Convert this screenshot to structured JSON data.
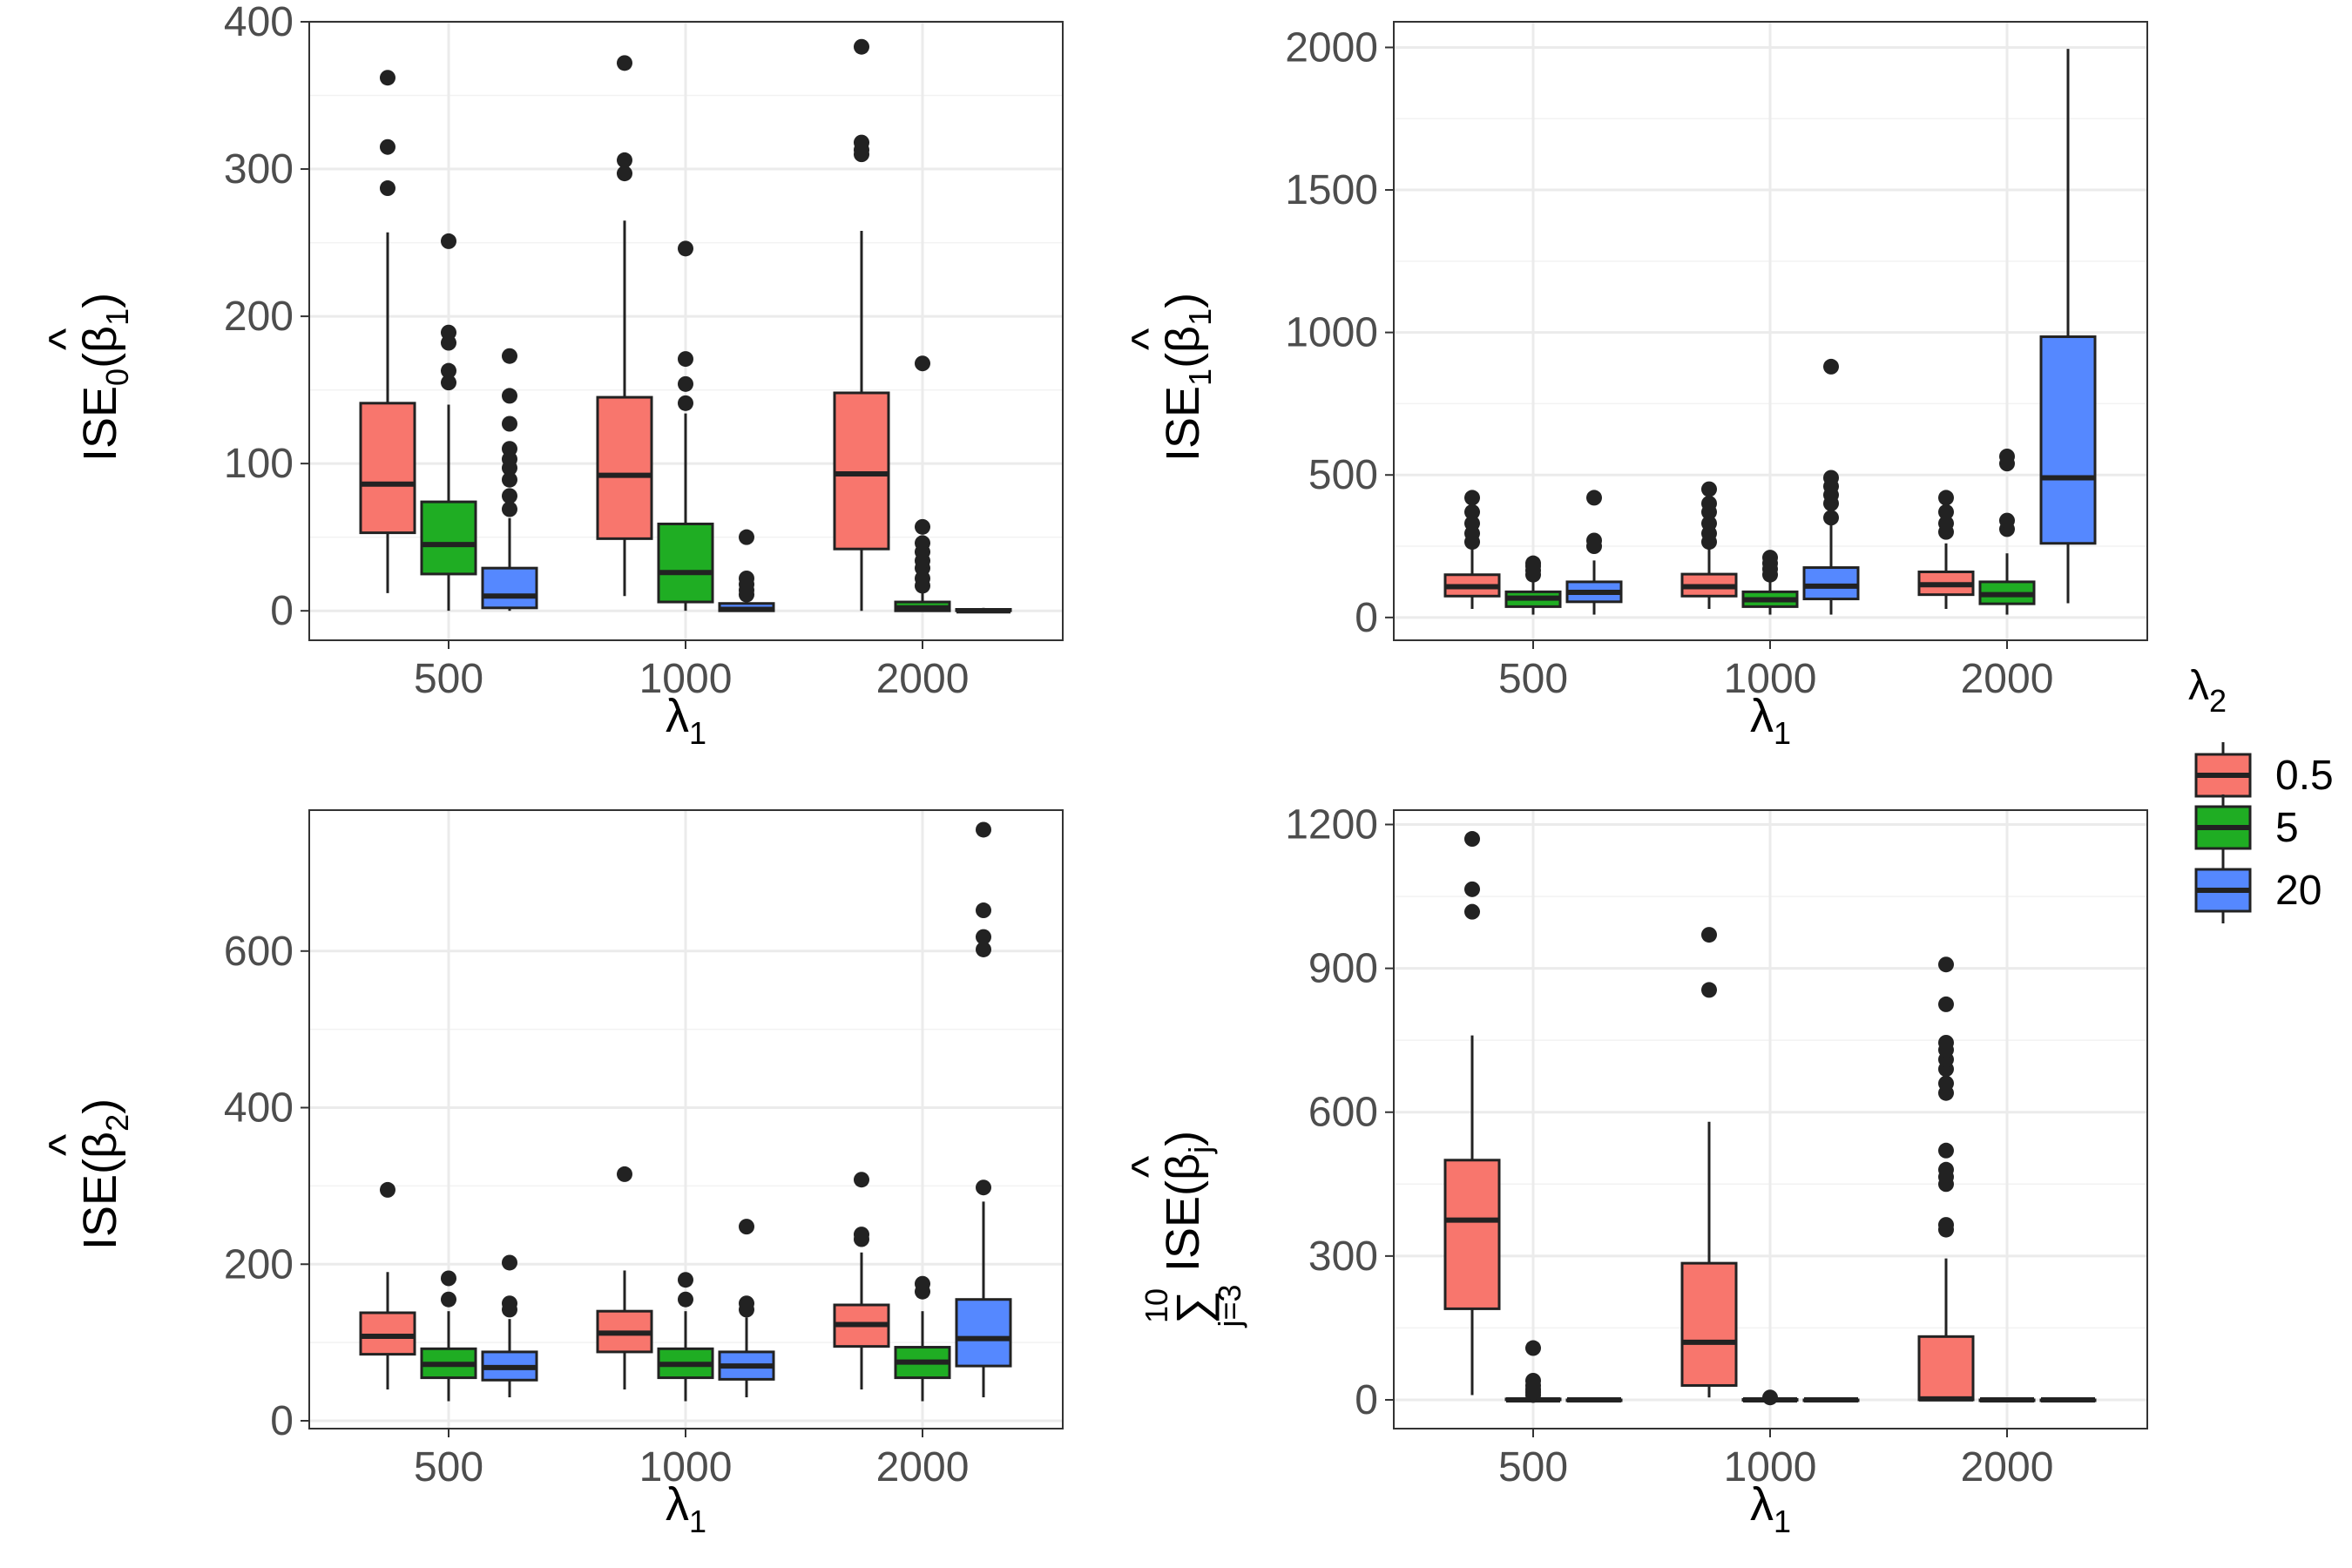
{
  "colors": {
    "s05": "#f8766d",
    "s5": "#1fad23",
    "s20": "#5588ff",
    "grid": "#ebebeb",
    "stroke": "#222222"
  },
  "legend": {
    "title": "λ",
    "title_sub": "2",
    "items": [
      {
        "label": "0.5",
        "color": "#f8766d"
      },
      {
        "label": "5",
        "color": "#1fad23"
      },
      {
        "label": "20",
        "color": "#5588ff"
      }
    ]
  },
  "chart_data": [
    {
      "type": "boxplot",
      "title": "",
      "xlabel": "λ",
      "xlabel_sub": "1",
      "ylabel": {
        "pre": "ISE",
        "pre_sub": "0",
        "open": "(",
        "hat": "^",
        "sym": "β",
        "sym_sub": "1",
        "close": ")"
      },
      "categories": [
        "500",
        "1000",
        "2000"
      ],
      "ylim": [
        -20,
        400
      ],
      "yticks": [
        0,
        100,
        200,
        300,
        400
      ],
      "ytick_labels": [
        "0",
        "100",
        "200",
        "300",
        "400"
      ],
      "series": [
        {
          "name": "0.5",
          "boxes": [
            {
              "whisker_low": 12,
              "q1": 53,
              "median": 86,
              "q3": 141,
              "whisker_high": 257,
              "outliers": [
                287,
                315,
                362
              ]
            },
            {
              "whisker_low": 10,
              "q1": 49,
              "median": 92,
              "q3": 145,
              "whisker_high": 265,
              "outliers": [
                297,
                306,
                372
              ]
            },
            {
              "whisker_low": 0,
              "q1": 42,
              "median": 93,
              "q3": 148,
              "whisker_high": 258,
              "outliers": [
                310,
                313,
                318,
                383
              ]
            }
          ]
        },
        {
          "name": "5",
          "boxes": [
            {
              "whisker_low": 0,
              "q1": 25,
              "median": 45,
              "q3": 74,
              "whisker_high": 140,
              "outliers": [
                155,
                163,
                182,
                189,
                251
              ]
            },
            {
              "whisker_low": 0,
              "q1": 6,
              "median": 26,
              "q3": 59,
              "whisker_high": 134,
              "outliers": [
                141,
                154,
                171,
                246
              ]
            },
            {
              "whisker_low": 0,
              "q1": 0,
              "median": 2,
              "q3": 6,
              "whisker_high": 12,
              "outliers": [
                17,
                22,
                29,
                34,
                40,
                46,
                57,
                168
              ]
            }
          ]
        },
        {
          "name": "20",
          "boxes": [
            {
              "whisker_low": 0,
              "q1": 2,
              "median": 10,
              "q3": 29,
              "whisker_high": 63,
              "outliers": [
                69,
                78,
                89,
                97,
                103,
                110,
                127,
                146,
                173
              ]
            },
            {
              "whisker_low": 0,
              "q1": 0,
              "median": 1,
              "q3": 5,
              "whisker_high": 9,
              "outliers": [
                11,
                14,
                18,
                22,
                50
              ]
            },
            {
              "whisker_low": 0,
              "q1": 0,
              "median": 0,
              "q3": 1,
              "whisker_high": 2,
              "outliers": []
            }
          ]
        }
      ]
    },
    {
      "type": "boxplot",
      "title": "",
      "xlabel": "λ",
      "xlabel_sub": "1",
      "ylabel": {
        "pre": "ISE",
        "pre_sub": "1",
        "open": "(",
        "hat": "^",
        "sym": "β",
        "sym_sub": "1",
        "close": ")"
      },
      "categories": [
        "500",
        "1000",
        "2000"
      ],
      "ylim": [
        -80,
        2090
      ],
      "yticks": [
        0,
        500,
        1000,
        1500,
        2000
      ],
      "ytick_labels": [
        "0",
        "500",
        "1000",
        "1500",
        "2000"
      ],
      "series": [
        {
          "name": "0.5",
          "boxes": [
            {
              "whisker_low": 30,
              "q1": 75,
              "median": 108,
              "q3": 150,
              "whisker_high": 250,
              "outliers": [
                265,
                295,
                330,
                370,
                420
              ]
            },
            {
              "whisker_low": 30,
              "q1": 75,
              "median": 108,
              "q3": 152,
              "whisker_high": 250,
              "outliers": [
                265,
                295,
                330,
                370,
                400,
                450
              ]
            },
            {
              "whisker_low": 30,
              "q1": 80,
              "median": 115,
              "q3": 160,
              "whisker_high": 260,
              "outliers": [
                300,
                330,
                370,
                420
              ]
            }
          ]
        },
        {
          "name": "5",
          "boxes": [
            {
              "whisker_low": 10,
              "q1": 38,
              "median": 68,
              "q3": 90,
              "whisker_high": 140,
              "outliers": [
                150,
                165,
                180,
                190
              ]
            },
            {
              "whisker_low": 10,
              "q1": 38,
              "median": 62,
              "q3": 90,
              "whisker_high": 140,
              "outliers": [
                150,
                170,
                190,
                210
              ]
            },
            {
              "whisker_low": 10,
              "q1": 48,
              "median": 80,
              "q3": 125,
              "whisker_high": 225,
              "outliers": [
                310,
                340,
                540,
                565
              ]
            }
          ]
        },
        {
          "name": "20",
          "boxes": [
            {
              "whisker_low": 10,
              "q1": 55,
              "median": 88,
              "q3": 125,
              "whisker_high": 200,
              "outliers": [
                250,
                270,
                420
              ]
            },
            {
              "whisker_low": 10,
              "q1": 65,
              "median": 110,
              "q3": 175,
              "whisker_high": 330,
              "outliers": [
                350,
                400,
                430,
                460,
                490,
                880
              ]
            },
            {
              "whisker_low": 50,
              "q1": 260,
              "median": 490,
              "q3": 985,
              "whisker_high": 1995,
              "outliers": []
            }
          ]
        }
      ]
    },
    {
      "type": "boxplot",
      "title": "",
      "xlabel": "λ",
      "xlabel_sub": "1",
      "ylabel": {
        "pre": "ISE",
        "pre_sub": "",
        "open": "(",
        "hat": "^",
        "sym": "β",
        "sym_sub": "2",
        "close": ")"
      },
      "categories": [
        "500",
        "1000",
        "2000"
      ],
      "ylim": [
        -10,
        780
      ],
      "yticks": [
        0,
        200,
        400,
        600
      ],
      "ytick_labels": [
        "0",
        "200",
        "400",
        "600"
      ],
      "series": [
        {
          "name": "0.5",
          "boxes": [
            {
              "whisker_low": 40,
              "q1": 85,
              "median": 108,
              "q3": 138,
              "whisker_high": 190,
              "outliers": [
                295
              ]
            },
            {
              "whisker_low": 40,
              "q1": 88,
              "median": 112,
              "q3": 140,
              "whisker_high": 192,
              "outliers": [
                315
              ]
            },
            {
              "whisker_low": 40,
              "q1": 95,
              "median": 123,
              "q3": 148,
              "whisker_high": 215,
              "outliers": [
                232,
                238,
                308
              ]
            }
          ]
        },
        {
          "name": "5",
          "boxes": [
            {
              "whisker_low": 25,
              "q1": 55,
              "median": 72,
              "q3": 92,
              "whisker_high": 140,
              "outliers": [
                155,
                182
              ]
            },
            {
              "whisker_low": 25,
              "q1": 55,
              "median": 72,
              "q3": 92,
              "whisker_high": 140,
              "outliers": [
                155,
                180
              ]
            },
            {
              "whisker_low": 25,
              "q1": 55,
              "median": 75,
              "q3": 94,
              "whisker_high": 140,
              "outliers": [
                165,
                175
              ]
            }
          ]
        },
        {
          "name": "20",
          "boxes": [
            {
              "whisker_low": 30,
              "q1": 52,
              "median": 68,
              "q3": 88,
              "whisker_high": 130,
              "outliers": [
                142,
                150,
                202
              ]
            },
            {
              "whisker_low": 30,
              "q1": 53,
              "median": 70,
              "q3": 88,
              "whisker_high": 132,
              "outliers": [
                142,
                150,
                248
              ]
            },
            {
              "whisker_low": 30,
              "q1": 70,
              "median": 105,
              "q3": 155,
              "whisker_high": 280,
              "outliers": [
                298,
                602,
                618,
                652,
                755
              ]
            }
          ]
        }
      ]
    },
    {
      "type": "boxplot",
      "title": "",
      "xlabel": "λ",
      "xlabel_sub": "1",
      "ylabel": {
        "sum": "∑",
        "sum_top": "10",
        "sum_bottom": "j=3",
        "pre": "ISE",
        "pre_sub": "",
        "open": "(",
        "hat": "^",
        "sym": "β",
        "sym_sub": "j",
        "close": ")"
      },
      "categories": [
        "500",
        "1000",
        "2000"
      ],
      "ylim": [
        -60,
        1230
      ],
      "yticks": [
        0,
        300,
        600,
        900,
        1200
      ],
      "ytick_labels": [
        "0",
        "300",
        "600",
        "900",
        "1200"
      ],
      "series": [
        {
          "name": "0.5",
          "boxes": [
            {
              "whisker_low": 10,
              "q1": 190,
              "median": 375,
              "q3": 500,
              "whisker_high": 760,
              "outliers": [
                1018,
                1065,
                1170
              ]
            },
            {
              "whisker_low": 5,
              "q1": 30,
              "median": 120,
              "q3": 285,
              "whisker_high": 580,
              "outliers": [
                855,
                970
              ]
            },
            {
              "whisker_low": 0,
              "q1": 0,
              "median": 2,
              "q3": 132,
              "whisker_high": 295,
              "outliers": [
                355,
                365,
                450,
                465,
                480,
                520,
                640,
                660,
                690,
                710,
                730,
                745,
                825,
                908
              ]
            }
          ]
        },
        {
          "name": "5",
          "boxes": [
            {
              "whisker_low": 0,
              "q1": 0,
              "median": 0,
              "q3": 2,
              "whisker_high": 5,
              "outliers": [
                10,
                16,
                22,
                30,
                40,
                108
              ]
            },
            {
              "whisker_low": 0,
              "q1": 0,
              "median": 0,
              "q3": 1,
              "whisker_high": 2,
              "outliers": [
                5
              ]
            },
            {
              "whisker_low": 0,
              "q1": 0,
              "median": 0,
              "q3": 0,
              "whisker_high": 0,
              "outliers": []
            }
          ]
        },
        {
          "name": "20",
          "boxes": [
            {
              "whisker_low": 0,
              "q1": 0,
              "median": 0,
              "q3": 0,
              "whisker_high": 0,
              "outliers": []
            },
            {
              "whisker_low": 0,
              "q1": 0,
              "median": 0,
              "q3": 0,
              "whisker_high": 0,
              "outliers": []
            },
            {
              "whisker_low": 0,
              "q1": 0,
              "median": 0,
              "q3": 0,
              "whisker_high": 0,
              "outliers": []
            }
          ]
        }
      ]
    }
  ]
}
